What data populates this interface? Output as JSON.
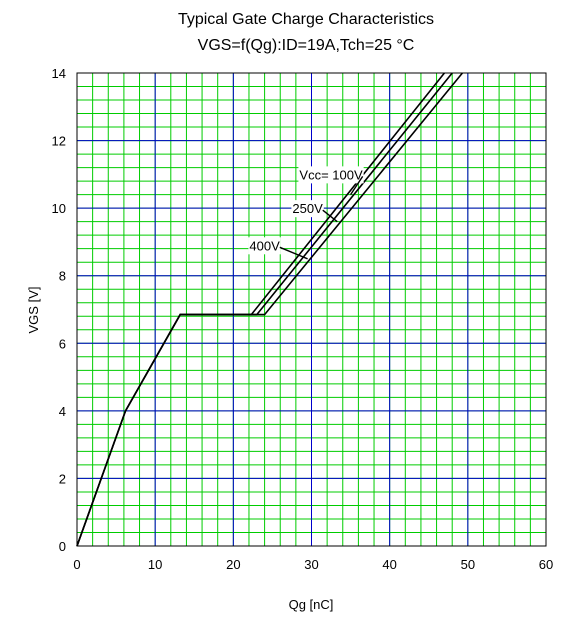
{
  "chart_data": {
    "type": "line",
    "title": "Typical Gate Charge Characteristics",
    "subtitle": "VGS=f(Qg):ID=19A,Tch=25 °C",
    "xlabel": "Qg [nC]",
    "ylabel": "VGS [V]",
    "xlim": [
      0,
      60
    ],
    "ylim": [
      0,
      14
    ],
    "x_ticks": [
      0,
      10,
      20,
      30,
      40,
      50,
      60
    ],
    "y_ticks": [
      0,
      2,
      4,
      6,
      8,
      10,
      12,
      14
    ],
    "x_tick_labels": [
      "0",
      "10",
      "20",
      "30",
      "40",
      "50",
      "60"
    ],
    "y_tick_labels": [
      "0",
      "2",
      "4",
      "6",
      "8",
      "10",
      "12",
      "14"
    ],
    "grid": {
      "major": true,
      "minor": true,
      "major_color": "#0000cc",
      "minor_color": "#00cc00"
    },
    "line_color": "#000000",
    "series": [
      {
        "points": [
          [
            0,
            0
          ],
          [
            6.2,
            4.0
          ],
          [
            13.2,
            6.85
          ],
          [
            22.3,
            6.85
          ],
          [
            47.0,
            14.0
          ]
        ]
      },
      {
        "points": [
          [
            0,
            0
          ],
          [
            6.2,
            4.0
          ],
          [
            13.2,
            6.85
          ],
          [
            23.0,
            6.85
          ],
          [
            48.0,
            14.0
          ]
        ]
      },
      {
        "points": [
          [
            0,
            0
          ],
          [
            6.2,
            4.0
          ],
          [
            13.2,
            6.85
          ],
          [
            24.0,
            6.85
          ],
          [
            49.3,
            14.0
          ]
        ]
      }
    ],
    "annotations": [
      {
        "text": "Vcc= 100V",
        "x": 32.5,
        "y": 11.0,
        "target": [
          35.0,
          10.4
        ]
      },
      {
        "text": "250V",
        "x": 29.5,
        "y": 10.0,
        "target": [
          33.3,
          9.6
        ]
      },
      {
        "text": "400V",
        "x": 24.0,
        "y": 8.9,
        "target": [
          29.5,
          8.5
        ]
      }
    ]
  }
}
